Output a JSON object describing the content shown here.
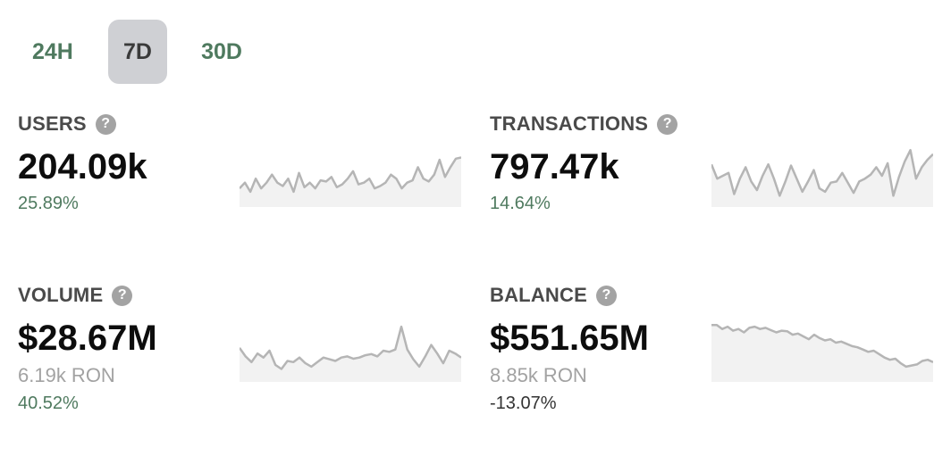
{
  "tabs": [
    {
      "label": "24H",
      "active": false
    },
    {
      "label": "7D",
      "active": true
    },
    {
      "label": "30D",
      "active": false
    }
  ],
  "metrics": [
    {
      "title": "USERS",
      "value": "204.09k",
      "sub": "",
      "change": "25.89%",
      "change_color": "#4f7a5f",
      "sparkline": [
        0.72,
        0.62,
        0.78,
        0.55,
        0.72,
        0.62,
        0.48,
        0.62,
        0.68,
        0.55,
        0.78,
        0.45,
        0.7,
        0.62,
        0.72,
        0.58,
        0.6,
        0.52,
        0.7,
        0.65,
        0.55,
        0.42,
        0.65,
        0.62,
        0.55,
        0.72,
        0.68,
        0.62,
        0.48,
        0.55,
        0.72,
        0.62,
        0.58,
        0.35,
        0.55,
        0.6,
        0.48,
        0.22,
        0.52,
        0.35,
        0.2,
        0.18
      ]
    },
    {
      "title": "TRANSACTIONS",
      "value": "797.47k",
      "sub": "",
      "change": "14.64%",
      "change_color": "#4f7a5f",
      "sparkline": [
        0.3,
        0.55,
        0.5,
        0.45,
        0.82,
        0.55,
        0.35,
        0.6,
        0.75,
        0.5,
        0.3,
        0.55,
        0.85,
        0.6,
        0.32,
        0.55,
        0.78,
        0.6,
        0.4,
        0.72,
        0.78,
        0.62,
        0.6,
        0.45,
        0.62,
        0.8,
        0.6,
        0.55,
        0.48,
        0.35,
        0.5,
        0.28,
        0.85,
        0.52,
        0.25,
        0.05,
        0.55,
        0.35,
        0.22,
        0.12
      ]
    },
    {
      "title": "VOLUME",
      "value": "$28.67M",
      "sub": "6.19k RON",
      "change": "40.52%",
      "change_color": "#4f7a5f",
      "sparkline": [
        0.45,
        0.6,
        0.7,
        0.55,
        0.62,
        0.5,
        0.75,
        0.82,
        0.68,
        0.7,
        0.62,
        0.72,
        0.78,
        0.7,
        0.62,
        0.65,
        0.68,
        0.62,
        0.6,
        0.64,
        0.62,
        0.58,
        0.56,
        0.6,
        0.5,
        0.52,
        0.48,
        0.08,
        0.48,
        0.65,
        0.78,
        0.6,
        0.4,
        0.55,
        0.72,
        0.5,
        0.55,
        0.62
      ]
    },
    {
      "title": "BALANCE",
      "value": "$551.65M",
      "sub": "8.85k RON",
      "change": "-13.07%",
      "change_color": "#333333",
      "sparkline": [
        0.05,
        0.05,
        0.12,
        0.08,
        0.15,
        0.12,
        0.18,
        0.1,
        0.08,
        0.12,
        0.1,
        0.14,
        0.18,
        0.15,
        0.16,
        0.22,
        0.2,
        0.25,
        0.3,
        0.22,
        0.28,
        0.32,
        0.3,
        0.36,
        0.34,
        0.38,
        0.42,
        0.44,
        0.48,
        0.52,
        0.5,
        0.56,
        0.62,
        0.66,
        0.64,
        0.72,
        0.78,
        0.76,
        0.74,
        0.68,
        0.66,
        0.7
      ]
    }
  ],
  "colors": {
    "accent_green": "#4f7a5f",
    "active_tab_bg": "#cfd0d4",
    "spark_line": "#b5b5b5",
    "spark_fill": "#f2f2f2",
    "help_icon": "#a3a3a3"
  }
}
